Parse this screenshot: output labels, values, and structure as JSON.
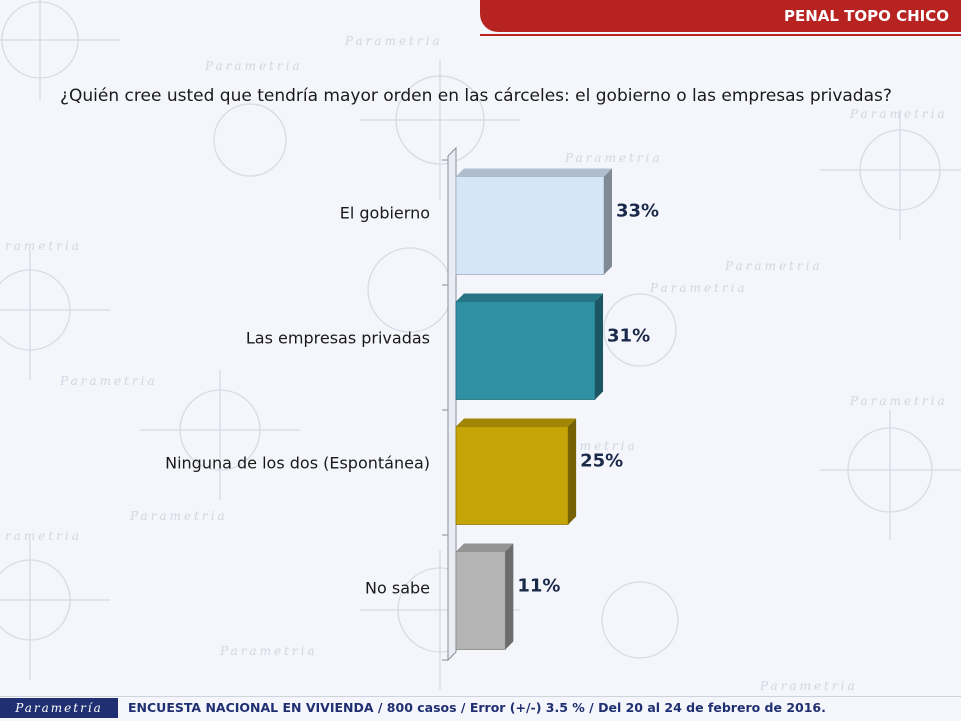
{
  "header": {
    "title": "PENAL TOPO CHICO"
  },
  "question": "¿Quién cree usted que tendría mayor orden en las cárceles: el gobierno o las empresas privadas?",
  "chart_data": {
    "type": "bar",
    "orientation": "horizontal",
    "categories": [
      "El gobierno",
      "Las empresas privadas",
      "Ninguna de los dos (Espontánea)",
      "No sabe"
    ],
    "values": [
      33,
      31,
      25,
      11
    ],
    "value_labels": [
      "33%",
      "31%",
      "25%",
      "11%"
    ],
    "colors": [
      "#d6e6f9",
      "#2f8fa3",
      "#c4a407",
      "#b4b4b4"
    ],
    "xlim": [
      0,
      100
    ],
    "grid": false,
    "legend": "none"
  },
  "footer": {
    "brand": "Parametría",
    "text": "ENCUESTA NACIONAL EN VIVIENDA / 800 casos / Error (+/-) 3.5 % / Del 20 al 24 de febrero de 2016."
  }
}
